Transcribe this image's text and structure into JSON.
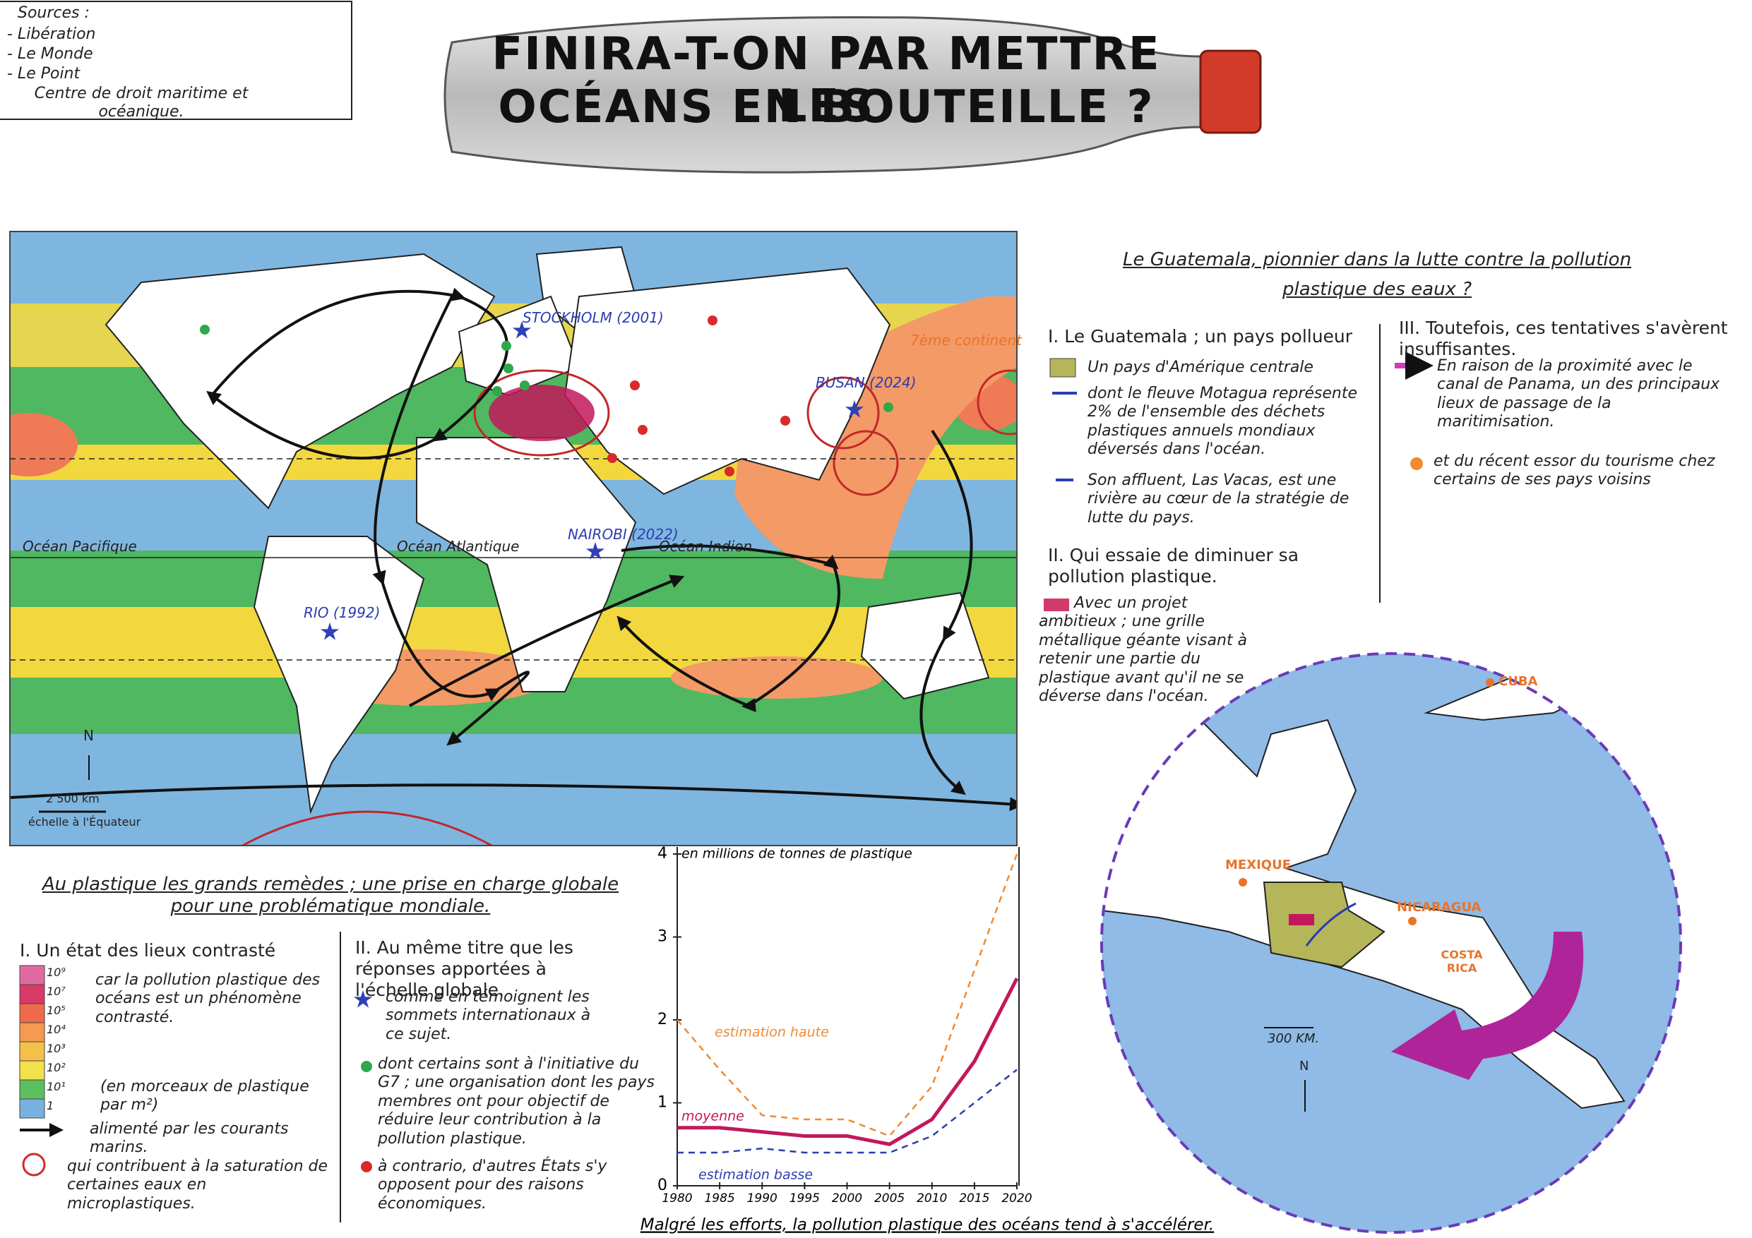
{
  "sources": {
    "heading": "Sources :",
    "items": [
      "- Libération",
      "- Le Monde",
      "- Le Point",
      "Centre de droit maritime et océanique."
    ]
  },
  "title": {
    "lines": [
      "FINIRA-T-ON PAR METTRE LES",
      "OCÉANS EN BOUTEILLE ?"
    ]
  },
  "world_map": {
    "labels": [
      "Océan Pacifique",
      "Océan Atlantique",
      "Océan Indien",
      "STOCKHOLM (2001)",
      "BUSAN (2024)",
      "NAIROBI (2022)",
      "RIO (1992)",
      "7ème continent",
      "N",
      "2 500 km",
      "échelle à l'Équateur"
    ]
  },
  "left_legend": {
    "title": "Au plastique les grands remèdes ; une prise en charge globale pour une problématique mondiale.",
    "scale_labels": [
      "10⁹",
      "10⁷",
      "10⁵",
      "10⁴",
      "10³",
      "10²",
      "10¹",
      "1"
    ],
    "sections": [
      {
        "heading": "I. Un état des lieux contrasté",
        "items": [
          "car la pollution plastique des océans est un phénomène contrasté.",
          "(en morceaux de plastique par m²)",
          "alimenté par les courants marins.",
          "qui contribuent à la saturation de certaines eaux en microplastiques."
        ]
      },
      {
        "heading": "II. Au même titre que les réponses apportées à l'échelle globale.",
        "items": [
          "comme en témoignent les sommets internationaux à ce sujet.",
          "dont certains sont à l'initiative du G7 ; une organisation dont les pays membres ont pour objectif de réduire leur contribution à la pollution plastique.",
          "à contrario, d'autres États s'y opposent pour des raisons économiques."
        ]
      }
    ]
  },
  "right_panel": {
    "title": "Le Guatemala, pionnier dans la lutte contre la pollution plastique des eaux ?",
    "sections": [
      {
        "heading": "I. Le Guatemala ; un pays pollueur",
        "items": [
          "Un pays d'Amérique centrale",
          "dont le fleuve Motagua représente 2% de l'ensemble des déchets plastiques annuels mondiaux déversés dans l'océan.",
          "Son affluent, Las Vacas, est une rivière au cœur de la stratégie de lutte du pays."
        ]
      },
      {
        "heading": "II. Qui essaie de diminuer sa pollution plastique.",
        "items": [
          "Avec un projet ambitieux ; une grille métallique géante visant à retenir une partie du plastique avant qu'il ne se déverse dans l'océan."
        ]
      },
      {
        "heading": "III. Toutefois, ces tentatives s'avèrent insuffisantes.",
        "items": [
          "En raison de la proximité avec le canal de Panama, un des principaux lieux de passage de la maritimisation.",
          "et du récent essor du tourisme chez certains de ses pays voisins"
        ]
      }
    ]
  },
  "inset_map": {
    "labels": [
      "CUBA",
      "MEXIQUE",
      "NICARAGUA",
      "COSTA RICA",
      "300 KM.",
      "N"
    ]
  },
  "chart_data": {
    "type": "line",
    "y_axis_label": "en millions de tonnes de plastique",
    "caption": "Malgré les efforts, la pollution plastique des océans tend à s'accélérer.",
    "x": [
      1980,
      1985,
      1990,
      1995,
      2000,
      2005,
      2010,
      2015,
      2020
    ],
    "xlim": [
      1980,
      2020
    ],
    "xticks": [
      1980,
      1985,
      1990,
      1995,
      2000,
      2005,
      2010,
      2015,
      2020
    ],
    "ylim": [
      0,
      4
    ],
    "yticks": [
      0,
      1,
      2,
      3,
      4
    ],
    "series": [
      {
        "name": "estimation haute",
        "color": "#f08a30",
        "dashed": true,
        "values": [
          2.0,
          1.4,
          0.85,
          0.8,
          0.8,
          0.6,
          1.2,
          2.6,
          4.0
        ]
      },
      {
        "name": "moyenne",
        "color": "#c2185b",
        "dashed": false,
        "values": [
          0.7,
          0.7,
          0.65,
          0.6,
          0.6,
          0.5,
          0.8,
          1.5,
          2.5
        ]
      },
      {
        "name": "estimation basse",
        "color": "#2a3db0",
        "dashed": true,
        "values": [
          0.4,
          0.4,
          0.45,
          0.4,
          0.4,
          0.4,
          0.6,
          1.0,
          1.4
        ]
      }
    ]
  }
}
